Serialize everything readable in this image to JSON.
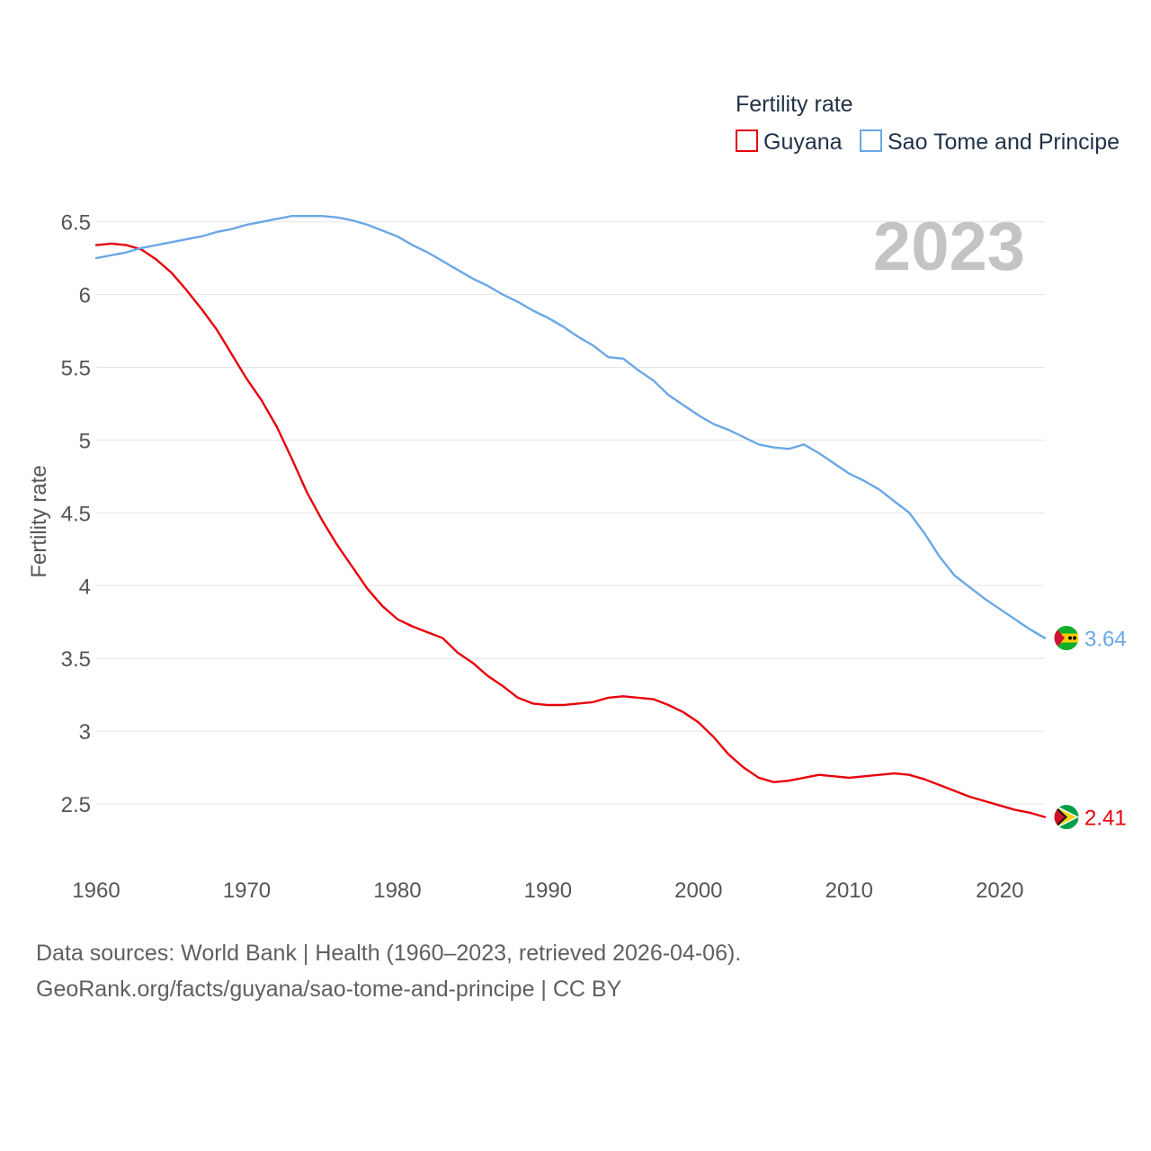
{
  "colors": {
    "guyana": "#e8000b",
    "sao_tome": "#6aa7e6",
    "grid": "#e6e6e6",
    "tick_text": "#555555",
    "year_overlay": "#c4c4c4",
    "legend_title": "#1f3146"
  },
  "chart_data": {
    "type": "line",
    "title": "",
    "ylabel": "Fertility rate",
    "xlabel": "",
    "legend_title": "Fertility rate",
    "year_overlay": "2023",
    "x_ticks": [
      1960,
      1970,
      1980,
      1990,
      2000,
      2010,
      2020
    ],
    "y_ticks": [
      2.5,
      3,
      3.5,
      4,
      4.5,
      5,
      5.5,
      6,
      6.5
    ],
    "xlim": [
      1960,
      2023
    ],
    "ylim": [
      2.0,
      6.85
    ],
    "grid": true,
    "legend_position": "top-right",
    "series": [
      {
        "name": "Guyana",
        "color_key": "guyana",
        "final_label": "2.41",
        "flag": "guyana-flag",
        "points": [
          [
            1960,
            6.34
          ],
          [
            1961,
            6.35
          ],
          [
            1962,
            6.34
          ],
          [
            1963,
            6.31
          ],
          [
            1964,
            6.24
          ],
          [
            1965,
            6.15
          ],
          [
            1966,
            6.03
          ],
          [
            1967,
            5.9
          ],
          [
            1968,
            5.76
          ],
          [
            1969,
            5.59
          ],
          [
            1970,
            5.42
          ],
          [
            1971,
            5.27
          ],
          [
            1972,
            5.09
          ],
          [
            1973,
            4.87
          ],
          [
            1974,
            4.64
          ],
          [
            1975,
            4.45
          ],
          [
            1976,
            4.28
          ],
          [
            1977,
            4.13
          ],
          [
            1978,
            3.98
          ],
          [
            1979,
            3.86
          ],
          [
            1980,
            3.77
          ],
          [
            1981,
            3.72
          ],
          [
            1982,
            3.68
          ],
          [
            1983,
            3.64
          ],
          [
            1984,
            3.54
          ],
          [
            1985,
            3.47
          ],
          [
            1986,
            3.38
          ],
          [
            1987,
            3.31
          ],
          [
            1988,
            3.23
          ],
          [
            1989,
            3.19
          ],
          [
            1990,
            3.18
          ],
          [
            1991,
            3.18
          ],
          [
            1992,
            3.19
          ],
          [
            1993,
            3.2
          ],
          [
            1994,
            3.23
          ],
          [
            1995,
            3.24
          ],
          [
            1996,
            3.23
          ],
          [
            1997,
            3.22
          ],
          [
            1998,
            3.18
          ],
          [
            1999,
            3.13
          ],
          [
            2000,
            3.06
          ],
          [
            2001,
            2.96
          ],
          [
            2002,
            2.84
          ],
          [
            2003,
            2.75
          ],
          [
            2004,
            2.68
          ],
          [
            2005,
            2.65
          ],
          [
            2006,
            2.66
          ],
          [
            2007,
            2.68
          ],
          [
            2008,
            2.7
          ],
          [
            2009,
            2.69
          ],
          [
            2010,
            2.68
          ],
          [
            2011,
            2.69
          ],
          [
            2012,
            2.7
          ],
          [
            2013,
            2.71
          ],
          [
            2014,
            2.7
          ],
          [
            2015,
            2.67
          ],
          [
            2016,
            2.63
          ],
          [
            2017,
            2.59
          ],
          [
            2018,
            2.55
          ],
          [
            2019,
            2.52
          ],
          [
            2020,
            2.49
          ],
          [
            2021,
            2.46
          ],
          [
            2022,
            2.44
          ],
          [
            2023,
            2.41
          ]
        ]
      },
      {
        "name": "Sao Tome and Principe",
        "color_key": "sao_tome",
        "final_label": "3.64",
        "flag": "sao-tome-and-principe-flag",
        "points": [
          [
            1960,
            6.25
          ],
          [
            1961,
            6.27
          ],
          [
            1962,
            6.29
          ],
          [
            1963,
            6.32
          ],
          [
            1964,
            6.34
          ],
          [
            1965,
            6.36
          ],
          [
            1966,
            6.38
          ],
          [
            1967,
            6.4
          ],
          [
            1968,
            6.43
          ],
          [
            1969,
            6.45
          ],
          [
            1970,
            6.48
          ],
          [
            1971,
            6.5
          ],
          [
            1972,
            6.52
          ],
          [
            1973,
            6.54
          ],
          [
            1974,
            6.54
          ],
          [
            1975,
            6.54
          ],
          [
            1976,
            6.53
          ],
          [
            1977,
            6.51
          ],
          [
            1978,
            6.48
          ],
          [
            1979,
            6.44
          ],
          [
            1980,
            6.4
          ],
          [
            1981,
            6.34
          ],
          [
            1982,
            6.29
          ],
          [
            1983,
            6.23
          ],
          [
            1984,
            6.17
          ],
          [
            1985,
            6.11
          ],
          [
            1986,
            6.06
          ],
          [
            1987,
            6.0
          ],
          [
            1988,
            5.95
          ],
          [
            1989,
            5.89
          ],
          [
            1990,
            5.84
          ],
          [
            1991,
            5.78
          ],
          [
            1992,
            5.71
          ],
          [
            1993,
            5.65
          ],
          [
            1994,
            5.57
          ],
          [
            1995,
            5.56
          ],
          [
            1996,
            5.48
          ],
          [
            1997,
            5.41
          ],
          [
            1998,
            5.31
          ],
          [
            1999,
            5.24
          ],
          [
            2000,
            5.17
          ],
          [
            2001,
            5.11
          ],
          [
            2002,
            5.07
          ],
          [
            2003,
            5.02
          ],
          [
            2004,
            4.97
          ],
          [
            2005,
            4.95
          ],
          [
            2006,
            4.94
          ],
          [
            2007,
            4.97
          ],
          [
            2008,
            4.91
          ],
          [
            2009,
            4.84
          ],
          [
            2010,
            4.77
          ],
          [
            2011,
            4.72
          ],
          [
            2012,
            4.66
          ],
          [
            2013,
            4.58
          ],
          [
            2014,
            4.5
          ],
          [
            2015,
            4.36
          ],
          [
            2016,
            4.2
          ],
          [
            2017,
            4.07
          ],
          [
            2018,
            3.99
          ],
          [
            2019,
            3.91
          ],
          [
            2020,
            3.84
          ],
          [
            2021,
            3.77
          ],
          [
            2022,
            3.7
          ],
          [
            2023,
            3.64
          ]
        ]
      }
    ]
  },
  "footer": {
    "line1": "Data sources: World Bank | Health (1960–2023, retrieved 2026-04-06).",
    "line2": "GeoRank.org/facts/guyana/sao-tome-and-principe | CC BY"
  }
}
